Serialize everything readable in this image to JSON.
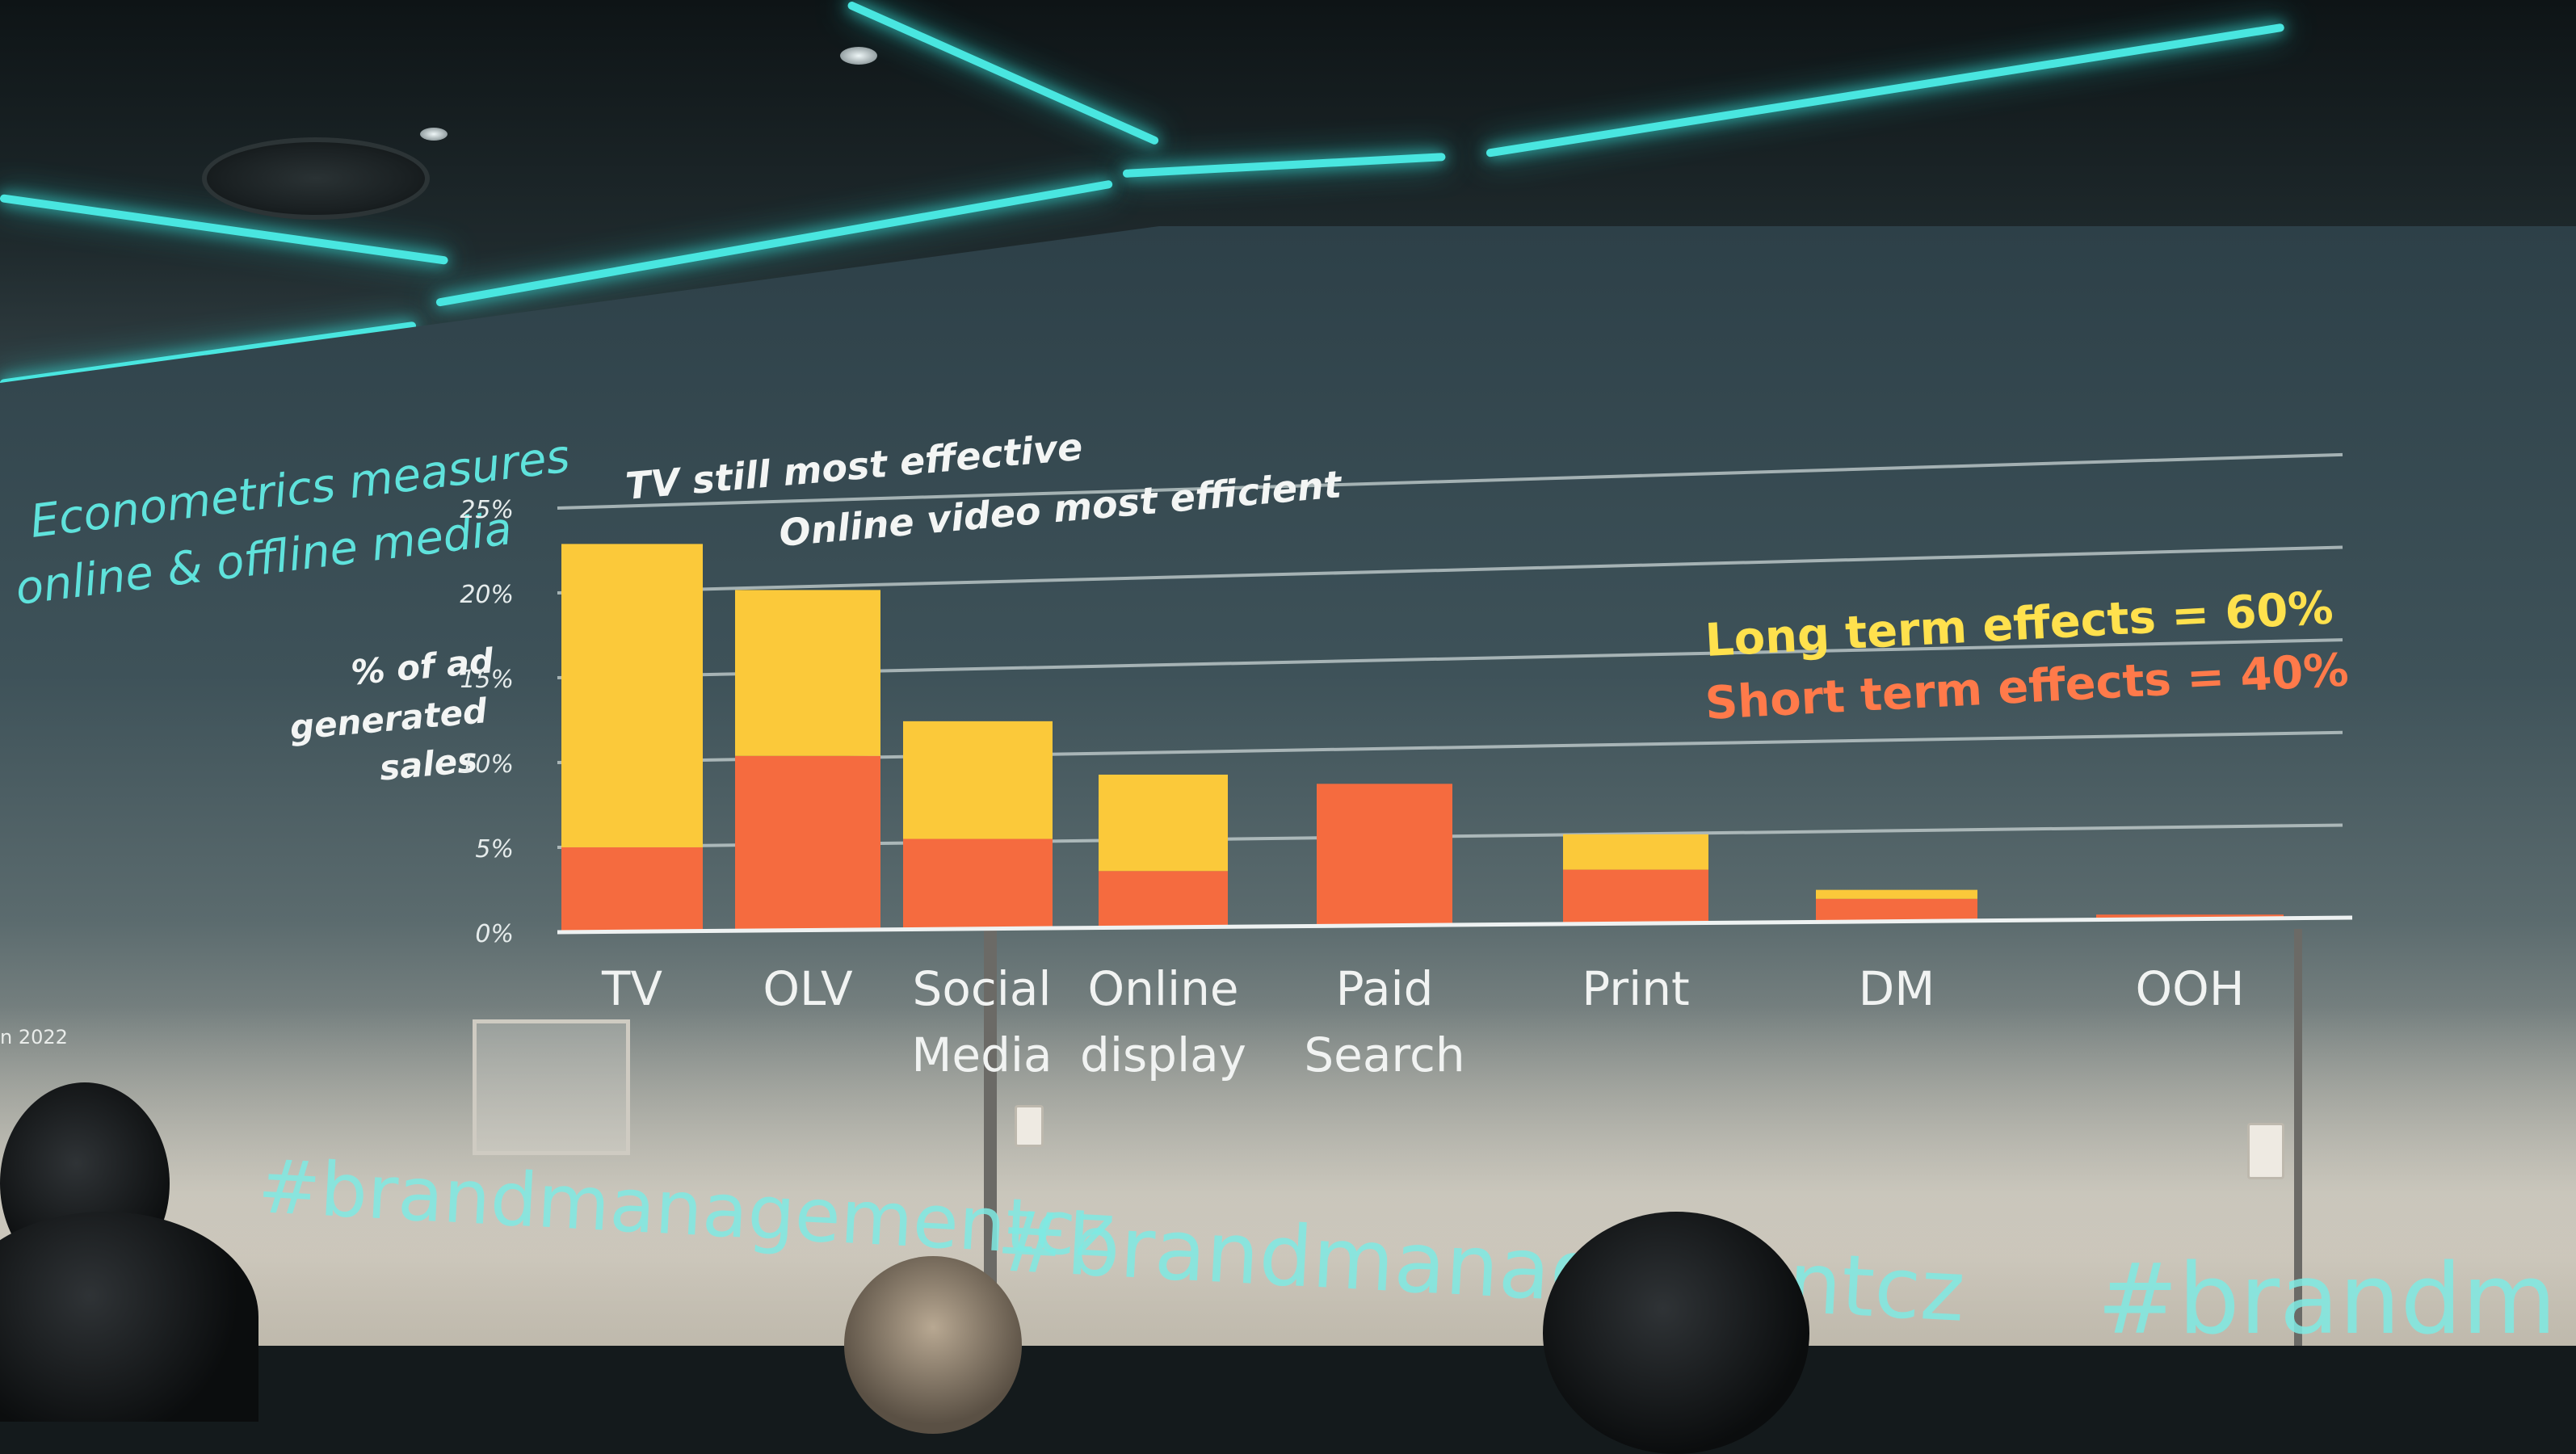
{
  "slide": {
    "headline": [
      "Econometrics measures",
      "online & offline media"
    ],
    "callout_tv": "TV still most effective",
    "callout_olv": "Online video most efficient",
    "annotation_long": "Long term effects = 60%",
    "annotation_short": "Short term effects = 40%",
    "source_fragment": "n 2022",
    "hashtag": "#brandmanagementcz",
    "hashtag_right": "#brandm"
  },
  "colors": {
    "long_term": "#fbc93a",
    "short_term": "#f56b3f",
    "headline": "#5fe2dc",
    "neon": "#49e6e0"
  },
  "chart_data": {
    "type": "bar",
    "stacked": true,
    "ylabel": [
      "% of ad",
      "generated",
      "sales"
    ],
    "yticks": [
      "0%",
      "5%",
      "10%",
      "15%",
      "20%",
      "25%"
    ],
    "ylim": [
      0,
      25
    ],
    "grid": true,
    "categories": [
      [
        "TV"
      ],
      [
        "OLV"
      ],
      [
        "Social",
        "Media"
      ],
      [
        "Online",
        "display"
      ],
      [
        "Paid",
        "Search"
      ],
      [
        "Print"
      ],
      [
        "DM"
      ],
      [
        "OOH"
      ]
    ],
    "series": [
      {
        "name": "Short term effects",
        "values": [
          5.0,
          10.5,
          5.5,
          3.5,
          9.0,
          3.5,
          1.5,
          0.3
        ]
      },
      {
        "name": "Long term effects",
        "values": [
          18.0,
          10.0,
          7.2,
          6.0,
          0.0,
          2.3,
          0.6,
          0.0
        ]
      }
    ]
  }
}
